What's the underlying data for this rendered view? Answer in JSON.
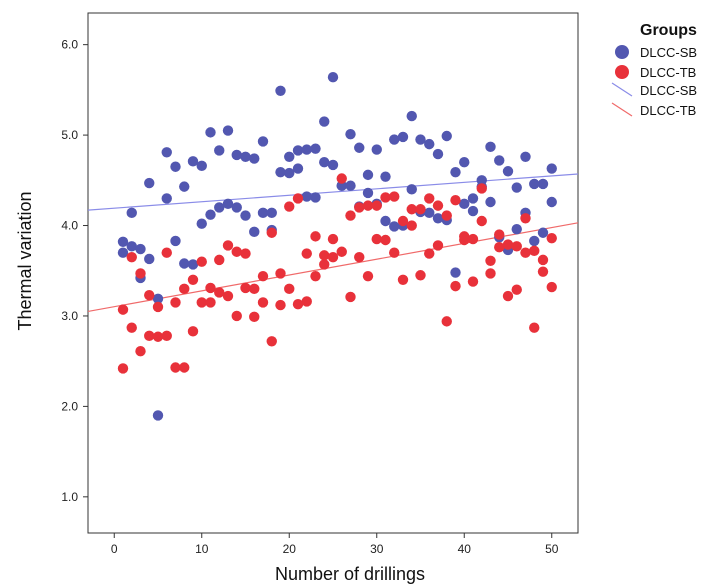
{
  "chart_data": {
    "type": "scatter",
    "title": "",
    "xlabel": "Number of drillings",
    "ylabel": "Thermal variation",
    "xlim": [
      -3,
      53
    ],
    "ylim": [
      0.6,
      6.35
    ],
    "x_ticks": [
      0,
      10,
      20,
      30,
      40,
      50
    ],
    "x_tick_labels": [
      "0",
      "10",
      "20",
      "30",
      "40",
      "50"
    ],
    "y_ticks": [
      1.0,
      2.0,
      3.0,
      4.0,
      5.0,
      6.0
    ],
    "y_tick_labels": [
      "1.0",
      "2.0",
      "3.0",
      "4.0",
      "5.0",
      "6.0"
    ],
    "grid": false,
    "legend": {
      "title": "Groups",
      "placement": "right",
      "entries": [
        {
          "label": "DLCC-SB",
          "kind": "marker",
          "color": "#5257b0"
        },
        {
          "label": "DLCC-TB",
          "kind": "marker",
          "color": "#e8313a"
        },
        {
          "label": "DLCC-SB",
          "kind": "line",
          "color": "#8a8ce8"
        },
        {
          "label": "DLCC-TB",
          "kind": "line",
          "color": "#f06a6a"
        }
      ]
    },
    "series": [
      {
        "name": "DLCC-SB",
        "color": "#5257b0",
        "points": [
          [
            1,
            3.82
          ],
          [
            1,
            3.7
          ],
          [
            2,
            4.14
          ],
          [
            2,
            3.77
          ],
          [
            3,
            3.74
          ],
          [
            3,
            3.42
          ],
          [
            4,
            4.47
          ],
          [
            4,
            3.63
          ],
          [
            5,
            3.19
          ],
          [
            5,
            1.9
          ],
          [
            6,
            4.81
          ],
          [
            6,
            4.3
          ],
          [
            7,
            4.65
          ],
          [
            7,
            3.83
          ],
          [
            8,
            4.43
          ],
          [
            8,
            3.58
          ],
          [
            9,
            4.71
          ],
          [
            9,
            3.57
          ],
          [
            10,
            4.66
          ],
          [
            10,
            4.02
          ],
          [
            11,
            5.03
          ],
          [
            11,
            4.12
          ],
          [
            12,
            4.83
          ],
          [
            12,
            4.2
          ],
          [
            13,
            5.05
          ],
          [
            13,
            4.24
          ],
          [
            14,
            4.78
          ],
          [
            14,
            4.2
          ],
          [
            15,
            4.76
          ],
          [
            15,
            4.11
          ],
          [
            16,
            4.74
          ],
          [
            16,
            3.93
          ],
          [
            17,
            4.93
          ],
          [
            17,
            4.14
          ],
          [
            18,
            4.14
          ],
          [
            18,
            3.95
          ],
          [
            19,
            5.49
          ],
          [
            19,
            4.59
          ],
          [
            20,
            4.58
          ],
          [
            20,
            4.76
          ],
          [
            21,
            4.83
          ],
          [
            21,
            4.63
          ],
          [
            22,
            4.32
          ],
          [
            22,
            4.84
          ],
          [
            23,
            4.85
          ],
          [
            23,
            4.31
          ],
          [
            24,
            5.15
          ],
          [
            24,
            4.7
          ],
          [
            25,
            5.64
          ],
          [
            25,
            4.67
          ],
          [
            26,
            4.44
          ],
          [
            26,
            4.44
          ],
          [
            27,
            5.01
          ],
          [
            27,
            4.44
          ],
          [
            28,
            4.86
          ],
          [
            28,
            4.21
          ],
          [
            29,
            4.56
          ],
          [
            29,
            4.36
          ],
          [
            30,
            4.84
          ],
          [
            30,
            4.24
          ],
          [
            31,
            4.54
          ],
          [
            31,
            4.05
          ],
          [
            32,
            4.95
          ],
          [
            32,
            3.99
          ],
          [
            33,
            4.98
          ],
          [
            33,
            4.0
          ],
          [
            34,
            5.21
          ],
          [
            34,
            4.4
          ],
          [
            35,
            4.95
          ],
          [
            35,
            4.15
          ],
          [
            36,
            4.9
          ],
          [
            36,
            4.14
          ],
          [
            37,
            4.79
          ],
          [
            37,
            4.08
          ],
          [
            38,
            4.99
          ],
          [
            38,
            4.06
          ],
          [
            39,
            4.59
          ],
          [
            39,
            3.48
          ],
          [
            40,
            4.24
          ],
          [
            40,
            4.7
          ],
          [
            41,
            4.16
          ],
          [
            41,
            4.3
          ],
          [
            42,
            4.43
          ],
          [
            42,
            4.5
          ],
          [
            43,
            4.87
          ],
          [
            43,
            4.26
          ],
          [
            44,
            4.72
          ],
          [
            44,
            3.87
          ],
          [
            45,
            4.6
          ],
          [
            45,
            3.73
          ],
          [
            46,
            4.42
          ],
          [
            46,
            3.96
          ],
          [
            47,
            4.76
          ],
          [
            47,
            4.14
          ],
          [
            48,
            3.83
          ],
          [
            48,
            4.46
          ],
          [
            49,
            4.46
          ],
          [
            49,
            3.92
          ],
          [
            50,
            4.63
          ],
          [
            50,
            4.26
          ]
        ]
      },
      {
        "name": "DLCC-TB",
        "color": "#e8313a",
        "points": [
          [
            1,
            2.42
          ],
          [
            1,
            3.07
          ],
          [
            2,
            2.87
          ],
          [
            2,
            3.65
          ],
          [
            3,
            2.61
          ],
          [
            3,
            3.47
          ],
          [
            4,
            2.78
          ],
          [
            4,
            3.23
          ],
          [
            5,
            2.77
          ],
          [
            5,
            3.1
          ],
          [
            6,
            2.78
          ],
          [
            6,
            3.7
          ],
          [
            7,
            2.43
          ],
          [
            7,
            3.15
          ],
          [
            8,
            2.43
          ],
          [
            8,
            3.3
          ],
          [
            9,
            3.4
          ],
          [
            9,
            2.83
          ],
          [
            10,
            3.15
          ],
          [
            10,
            3.6
          ],
          [
            11,
            3.31
          ],
          [
            11,
            3.15
          ],
          [
            12,
            3.62
          ],
          [
            12,
            3.26
          ],
          [
            13,
            3.78
          ],
          [
            13,
            3.22
          ],
          [
            14,
            3.71
          ],
          [
            14,
            3.0
          ],
          [
            15,
            3.69
          ],
          [
            15,
            3.31
          ],
          [
            16,
            2.99
          ],
          [
            16,
            3.3
          ],
          [
            17,
            3.15
          ],
          [
            17,
            3.44
          ],
          [
            18,
            2.72
          ],
          [
            18,
            3.92
          ],
          [
            19,
            3.12
          ],
          [
            19,
            3.47
          ],
          [
            20,
            4.21
          ],
          [
            20,
            3.3
          ],
          [
            21,
            4.3
          ],
          [
            21,
            3.13
          ],
          [
            22,
            3.69
          ],
          [
            22,
            3.16
          ],
          [
            23,
            3.88
          ],
          [
            23,
            3.44
          ],
          [
            24,
            3.57
          ],
          [
            24,
            3.67
          ],
          [
            25,
            3.65
          ],
          [
            25,
            3.85
          ],
          [
            26,
            4.52
          ],
          [
            26,
            3.71
          ],
          [
            27,
            3.21
          ],
          [
            27,
            4.11
          ],
          [
            28,
            3.65
          ],
          [
            28,
            4.2
          ],
          [
            29,
            4.22
          ],
          [
            29,
            3.44
          ],
          [
            30,
            3.85
          ],
          [
            30,
            4.22
          ],
          [
            31,
            3.84
          ],
          [
            31,
            4.31
          ],
          [
            32,
            4.32
          ],
          [
            32,
            3.7
          ],
          [
            33,
            3.4
          ],
          [
            33,
            4.05
          ],
          [
            34,
            4.0
          ],
          [
            34,
            4.18
          ],
          [
            35,
            3.45
          ],
          [
            35,
            4.18
          ],
          [
            36,
            4.3
          ],
          [
            36,
            3.69
          ],
          [
            37,
            4.22
          ],
          [
            37,
            3.78
          ],
          [
            38,
            2.94
          ],
          [
            38,
            4.11
          ],
          [
            39,
            3.33
          ],
          [
            39,
            4.28
          ],
          [
            40,
            3.84
          ],
          [
            40,
            3.88
          ],
          [
            41,
            3.38
          ],
          [
            41,
            3.85
          ],
          [
            42,
            4.41
          ],
          [
            42,
            4.05
          ],
          [
            43,
            3.61
          ],
          [
            43,
            3.47
          ],
          [
            44,
            3.9
          ],
          [
            44,
            3.76
          ],
          [
            45,
            3.79
          ],
          [
            45,
            3.22
          ],
          [
            46,
            3.29
          ],
          [
            46,
            3.77
          ],
          [
            47,
            4.08
          ],
          [
            47,
            3.7
          ],
          [
            48,
            2.87
          ],
          [
            48,
            3.72
          ],
          [
            49,
            3.49
          ],
          [
            49,
            3.62
          ],
          [
            50,
            3.86
          ],
          [
            50,
            3.32
          ]
        ]
      }
    ],
    "fit_lines": [
      {
        "name": "DLCC-SB",
        "color": "#8a8ce8",
        "x": [
          -3,
          53
        ],
        "y": [
          4.17,
          4.57
        ]
      },
      {
        "name": "DLCC-TB",
        "color": "#f06a6a",
        "x": [
          -3,
          53
        ],
        "y": [
          3.05,
          4.03
        ]
      }
    ]
  }
}
